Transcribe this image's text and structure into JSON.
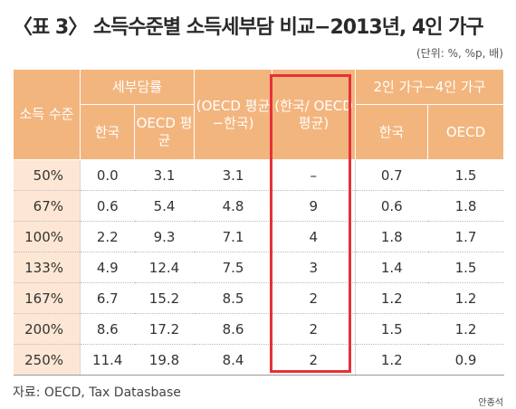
{
  "title": "〈표 3〉 소득수준별 소득세부담 비교−2013년, 4인 가구",
  "unit": "(단위: %, %p, 배)",
  "headers": {
    "income_level": "소득 수준",
    "tax_burden": "세부담률",
    "korea": "한국",
    "oecd_avg": "OECD 평균",
    "diff": "(OECD 평균−한국)",
    "ratio": "(한국/ OECD 평균)",
    "two_vs_four": "2인 가구−4인 가구",
    "korea2": "한국",
    "oecd": "OECD"
  },
  "rows": [
    [
      "50%",
      "0.0",
      "3.1",
      "3.1",
      "–",
      "0.7",
      "1.5"
    ],
    [
      "67%",
      "0.6",
      "5.4",
      "4.8",
      "9",
      "0.6",
      "1.8"
    ],
    [
      "100%",
      "2.2",
      "9.3",
      "7.1",
      "4",
      "1.8",
      "1.7"
    ],
    [
      "133%",
      "4.9",
      "12.4",
      "7.5",
      "3",
      "1.4",
      "1.5"
    ],
    [
      "167%",
      "6.7",
      "15.2",
      "8.5",
      "2",
      "1.2",
      "1.2"
    ],
    [
      "200%",
      "8.6",
      "17.2",
      "8.6",
      "2",
      "1.5",
      "1.2"
    ],
    [
      "250%",
      "11.4",
      "19.8",
      "8.4",
      "2",
      "1.2",
      "0.9"
    ]
  ],
  "source": "자료: OECD, Tax Datasbase",
  "credit": "안종석",
  "colors": {
    "header_bg": "#f3b57e",
    "first_col_bg": "#fde7d4",
    "highlight_border": "#e53238"
  }
}
